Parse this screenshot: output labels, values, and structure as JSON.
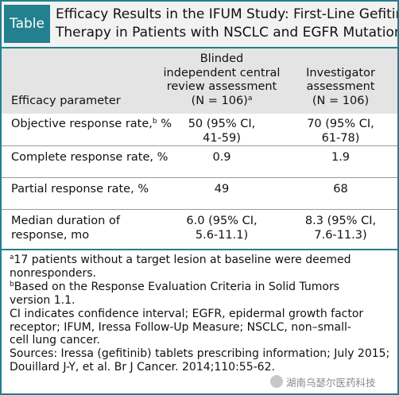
{
  "label": "Table",
  "title": [
    "Efficacy Results in the IFUM Study: First-Line Gefitinib",
    "Therapy in Patients with NSCLC and EGFR Mutation"
  ],
  "table": {
    "header": [
      {
        "lines": [
          "Efficacy parameter"
        ]
      },
      {
        "lines": [
          "Blinded",
          "independent central",
          "review assessment",
          "(N = 106)"
        ],
        "sup": "a"
      },
      {
        "lines": [
          "Investigator",
          "assessment",
          "(N = 106)"
        ]
      }
    ],
    "rows": [
      {
        "label": [
          "Objective response rate,"
        ],
        "label_sup": "b",
        "label_after": " %",
        "cells": [
          [
            "50 (95% CI,",
            "41-59)"
          ],
          [
            "70 (95% CI,",
            "61-78)"
          ]
        ]
      },
      {
        "label": [
          "Complete response rate, %"
        ],
        "cells": [
          [
            "0.9"
          ],
          [
            "1.9"
          ]
        ]
      },
      {
        "label": [
          "Partial response rate, %"
        ],
        "cells": [
          [
            "49"
          ],
          [
            "68"
          ]
        ]
      },
      {
        "label": [
          "Median duration of",
          "response, mo"
        ],
        "cells": [
          [
            "6.0 (95% CI,",
            "5.6-11.1)"
          ],
          [
            "8.3 (95% CI,",
            "7.6-11.3)"
          ]
        ]
      }
    ]
  },
  "footnotes": [
    {
      "sup": "a",
      "lines": [
        "17 patients without a target lesion at baseline were deemed",
        "nonresponders."
      ]
    },
    {
      "sup": "b",
      "lines": [
        "Based on the Response Evaluation Criteria in Solid Tumors",
        "version 1.1."
      ]
    },
    {
      "lines": [
        "CI indicates confidence interval; EGFR, epidermal growth factor",
        "receptor; IFUM, Iressa Follow-Up Measure; NSCLC, non–small-",
        "cell lung cancer."
      ]
    },
    {
      "lines": [
        "Sources: Iressa (gefitinib) tablets prescribing information; July 2015;",
        "Douillard J-Y, et al. Br J Cancer. 2014;110:55-62."
      ]
    }
  ],
  "watermark": "湖南乌瑟尔医药科技"
}
